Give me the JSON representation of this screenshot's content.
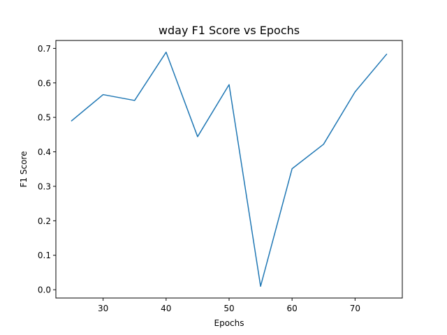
{
  "chart_data": {
    "type": "line",
    "title": "wday F1 Score vs Epochs",
    "xlabel": "Epochs",
    "ylabel": "F1 Score",
    "xlim": [
      22.5,
      77.5
    ],
    "ylim": [
      -0.024,
      0.723
    ],
    "xticks": [
      30,
      40,
      50,
      60,
      70
    ],
    "yticks": [
      0.0,
      0.1,
      0.2,
      0.3,
      0.4,
      0.5,
      0.6,
      0.7
    ],
    "grid": false,
    "series": [
      {
        "color": "#1f77b4",
        "x": [
          25,
          30,
          35,
          40,
          45,
          50,
          55,
          60,
          65,
          70,
          75
        ],
        "y": [
          0.49,
          0.566,
          0.549,
          0.689,
          0.444,
          0.595,
          0.01,
          0.351,
          0.422,
          0.574,
          0.683
        ]
      }
    ]
  }
}
